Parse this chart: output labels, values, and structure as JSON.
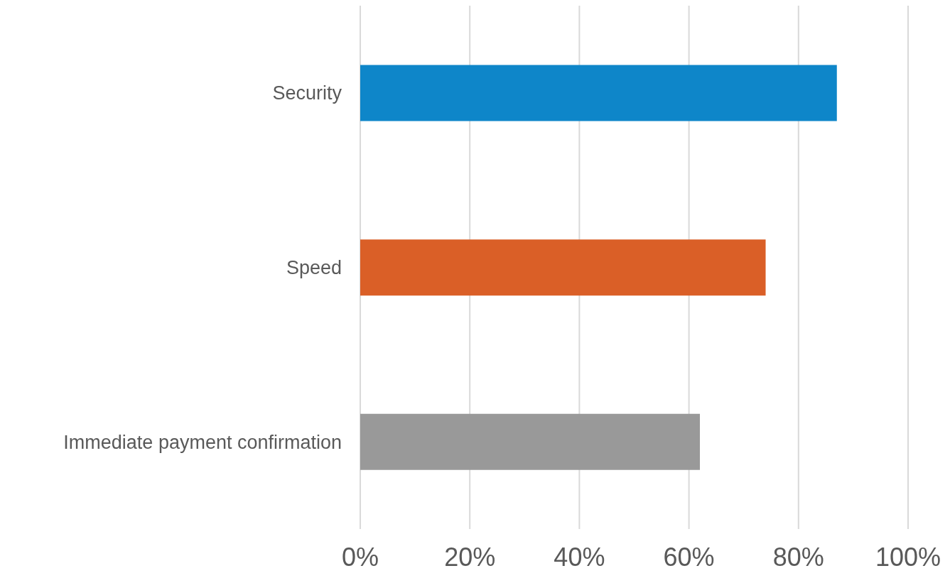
{
  "chart_data": {
    "type": "bar",
    "orientation": "horizontal",
    "categories": [
      "Security",
      "Speed",
      "Immediate payment confirmation"
    ],
    "values": [
      87,
      74,
      62
    ],
    "colors": [
      "#0e86c9",
      "#da5f27",
      "#999999"
    ],
    "xlim": [
      0,
      100
    ],
    "xticks": [
      {
        "value": 0,
        "label": "0%"
      },
      {
        "value": 20,
        "label": "20%"
      },
      {
        "value": 40,
        "label": "40%"
      },
      {
        "value": 60,
        "label": "60%"
      },
      {
        "value": 80,
        "label": "80%"
      },
      {
        "value": 100,
        "label": "100%"
      }
    ],
    "grid": "x",
    "legend": false
  }
}
